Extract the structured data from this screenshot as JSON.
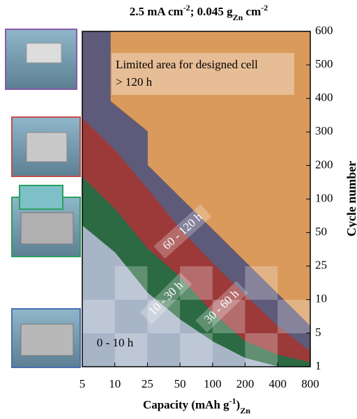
{
  "chart_data": {
    "type": "region",
    "title": [
      {
        "text": "2.5 mA cm"
      },
      {
        "text": "-2",
        "shift": "super"
      },
      {
        "text": "; 0.045 g"
      },
      {
        "text": "Zn",
        "shift": "sub"
      },
      {
        "text": " cm"
      },
      {
        "text": "-2",
        "shift": "super"
      }
    ],
    "x_label": [
      {
        "text": "Capacity (mAh g"
      },
      {
        "text": "-1",
        "shift": "super"
      },
      {
        "text": ")"
      },
      {
        "text": "Zn",
        "shift": "sub"
      }
    ],
    "y_label": "Cycle number",
    "xticks": [
      5,
      10,
      25,
      50,
      100,
      200,
      400,
      800
    ],
    "yticks": [
      1,
      5,
      10,
      25,
      50,
      100,
      200,
      300,
      400,
      500,
      600
    ],
    "xlim": [
      5,
      800
    ],
    "ylim": [
      1,
      600
    ],
    "background_region": {
      "lines": [
        "Limited area for designed cell",
        "> 120 h"
      ],
      "color": "#d99a5c",
      "edge_color": "#96683b"
    },
    "series": [
      {
        "name": "60 - 120 h",
        "color": "#5e5a7a",
        "x": [
          9.3,
          9.3,
          25,
          25,
          800
        ],
        "values": [
          600,
          390,
          300,
          200,
          6
        ]
      },
      {
        "name": "30 - 60 h",
        "color": "#9c3a3a",
        "x": [
          5,
          10,
          25,
          50,
          100,
          200,
          400,
          800
        ],
        "values": [
          340,
          245,
          130,
          55,
          27,
          12,
          6,
          2.8
        ]
      },
      {
        "name": "10 - 30 h",
        "color": "#2b6a42",
        "x": [
          5,
          10,
          25,
          50,
          100,
          200,
          400,
          800
        ],
        "values": [
          165,
          85,
          38,
          20,
          8,
          4,
          2.4,
          1.5
        ]
      },
      {
        "name": "0 - 10 h",
        "color": "#a8b5c7",
        "x": [
          5,
          10,
          25,
          50,
          100,
          200,
          400,
          800
        ],
        "values": [
          60,
          35,
          13,
          7,
          4,
          2,
          1,
          1
        ]
      }
    ]
  }
}
